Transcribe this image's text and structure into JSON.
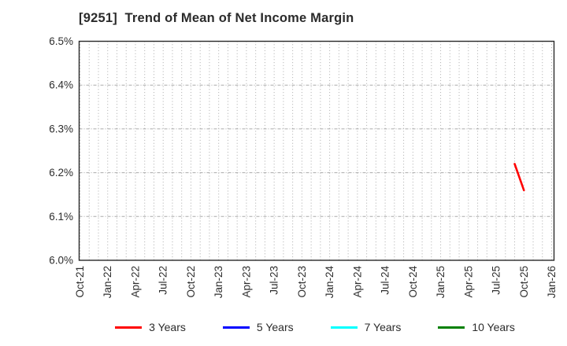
{
  "title": "[9251]  Trend of Mean of Net Income Margin",
  "chart_data": {
    "type": "line",
    "title": "[9251]  Trend of Mean of Net Income Margin",
    "xlabel": "",
    "ylabel": "",
    "x_ticks": [
      "Oct-21",
      "Jan-22",
      "Apr-22",
      "Jul-22",
      "Oct-22",
      "Jan-23",
      "Apr-23",
      "Jul-23",
      "Oct-23",
      "Jan-24",
      "Apr-24",
      "Jul-24",
      "Oct-24",
      "Jan-25",
      "Apr-25",
      "Jul-25",
      "Oct-25",
      "Jan-26"
    ],
    "y_ticks": [
      "6.0%",
      "6.1%",
      "6.2%",
      "6.3%",
      "6.4%",
      "6.5%"
    ],
    "ylim": [
      6.0,
      6.5
    ],
    "y_grid_values": [
      6.1,
      6.2,
      6.3,
      6.4
    ],
    "x_minor_grid": "monthly",
    "grid": true,
    "legend_position": "bottom-center",
    "series": [
      {
        "name": "3 Years",
        "color": "#ff0000",
        "points": [
          {
            "x": "Sep-25",
            "y": 6.22
          },
          {
            "x": "Oct-25",
            "y": 6.16
          }
        ]
      },
      {
        "name": "5 Years",
        "color": "#0000ff",
        "points": []
      },
      {
        "name": "7 Years",
        "color": "#00ffff",
        "points": []
      },
      {
        "name": "10 Years",
        "color": "#008000",
        "points": []
      }
    ]
  },
  "style": {
    "axis_color": "#2b2b2b",
    "tick_label_color": "#2e2e2e",
    "grid_color": "#aaaaaa",
    "background": "#ffffff"
  }
}
